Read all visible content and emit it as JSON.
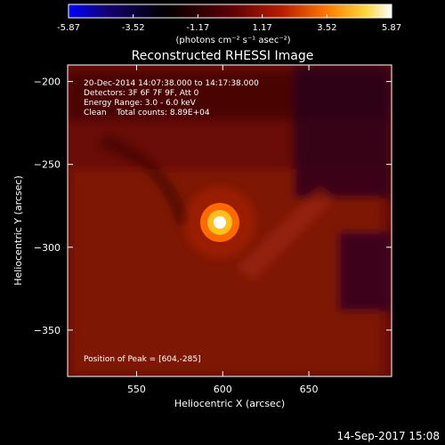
{
  "colorbar": {
    "ticks": [
      "-5.87",
      "-3.52",
      "-1.17",
      "1.17",
      "3.52",
      "5.87"
    ],
    "tick_values": [
      -5.87,
      -3.52,
      -1.17,
      1.17,
      3.52,
      5.87
    ],
    "range": [
      -5.87,
      5.87
    ],
    "unit_label": "(photons cm⁻² s⁻¹ asec⁻²)",
    "colors": [
      "#0000ff",
      "#140070",
      "#000000",
      "#5a0006",
      "#b81d00",
      "#ff7a00",
      "#ffd640",
      "#ffffff"
    ]
  },
  "chart_data": {
    "type": "heatmap",
    "title": "Reconstructed RHESSI Image",
    "xlabel": "Heliocentric X (arcsec)",
    "ylabel": "Heliocentric Y (arcsec)",
    "xlim": [
      510,
      698
    ],
    "ylim": [
      -378,
      -190
    ],
    "x_ticks": [
      550,
      600,
      650
    ],
    "y_ticks": [
      -200,
      -250,
      -300,
      -350
    ],
    "x_tick_labels": [
      "550",
      "600",
      "650"
    ],
    "y_tick_labels": [
      "−200",
      "−250",
      "−300",
      "−350"
    ],
    "peak": {
      "x": 604,
      "y": -285
    },
    "colormap": "RHESSI red-temperature",
    "annotations": [
      "20-Dec-2014 14:07:38.000 to 14:17:38.000",
      "Detectors: 3F 6F 7F 9F, Att 0",
      "Energy Range: 3.0 - 6.0 keV",
      "Clean    Total counts: 8.89E+04",
      "Position of Peak = [604,-285]"
    ]
  },
  "footer": {
    "timestamp": "14-Sep-2017 15:08"
  }
}
